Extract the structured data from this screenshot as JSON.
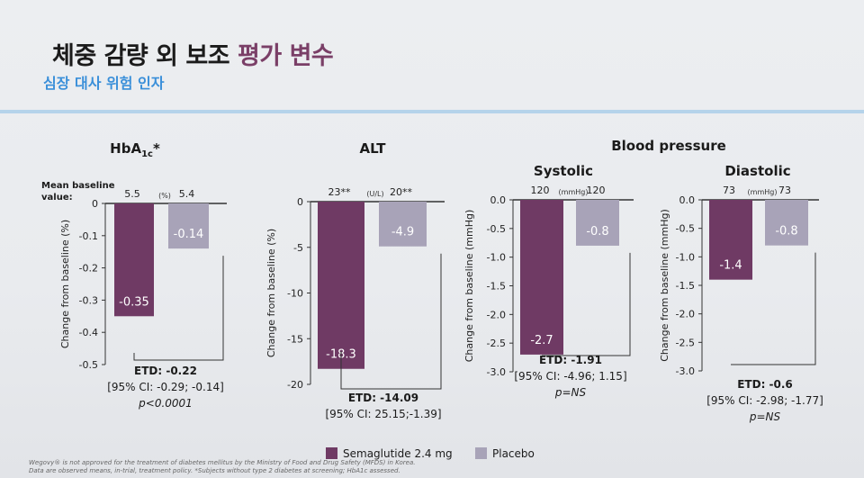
{
  "header": {
    "title_main": "체중 감량 외 보조",
    "title_highlight": "평가 변수",
    "subtitle": "심장 대사 위험 인자"
  },
  "mean_baseline_label": [
    "Mean baseline",
    "value:"
  ],
  "blood_pressure_title": "Blood pressure",
  "legend": [
    {
      "name": "Semaglutide 2.4 mg",
      "color": "#6f3a64"
    },
    {
      "name": "Placebo",
      "color": "#a8a3b8"
    }
  ],
  "footnotes": [
    "Wegovy® is not approved for the treatment of diabetes mellitus by the Ministry of Food and Drug Safety (MFDS) in Korea.",
    "Data are observed means, in-trial, treatment policy. *Subjects without type 2 diabetes at screening; HbA1c assessed."
  ],
  "chart_data": [
    {
      "type": "bar",
      "title": "HbA1c*",
      "ylabel": "Change from baseline (%)",
      "ylim": [
        -0.5,
        0
      ],
      "yticks": [
        0,
        -0.1,
        -0.2,
        -0.3,
        -0.4,
        -0.5
      ],
      "ytick_labels": [
        "0",
        "-0.1",
        "-0.2",
        "-0.3",
        "-0.4",
        "-0.5"
      ],
      "unit": "(%)",
      "baselines": [
        "5.5",
        "5.4"
      ],
      "series": [
        {
          "name": "Semaglutide 2.4 mg",
          "value": -0.35,
          "label": "-0.35"
        },
        {
          "name": "Placebo",
          "value": -0.14,
          "label": "-0.14"
        }
      ],
      "etd": [
        "ETD: -0.22",
        "[95% CI: -0.29; -0.14]",
        "p<0.0001"
      ]
    },
    {
      "type": "bar",
      "title": "ALT",
      "ylabel": "Change from baseline (%)",
      "ylim": [
        -20,
        0
      ],
      "yticks": [
        0,
        -5,
        -10,
        -15,
        -20
      ],
      "ytick_labels": [
        "0",
        "-5",
        "-10",
        "-15",
        "-20"
      ],
      "unit": "(U/L)",
      "baselines": [
        "23**",
        "20**"
      ],
      "series": [
        {
          "name": "Semaglutide 2.4 mg",
          "value": -18.3,
          "label": "-18.3"
        },
        {
          "name": "Placebo",
          "value": -4.9,
          "label": "-4.9"
        }
      ],
      "etd": [
        "ETD: -14.09",
        "[95% CI: 25.15;-1.39]",
        ""
      ]
    },
    {
      "type": "bar",
      "title": "Systolic",
      "ylabel": "Change from baseline (mmHg)",
      "ylim": [
        -3.0,
        0
      ],
      "yticks": [
        0,
        -0.5,
        -1.0,
        -1.5,
        -2.0,
        -2.5,
        -3.0
      ],
      "ytick_labels": [
        "0.0",
        "-0.5",
        "-1.0",
        "-1.5",
        "-2.0",
        "-2.5",
        "-3.0"
      ],
      "unit": "(mmHg)",
      "baselines": [
        "120",
        "120"
      ],
      "series": [
        {
          "name": "Semaglutide 2.4 mg",
          "value": -2.7,
          "label": "-2.7"
        },
        {
          "name": "Placebo",
          "value": -0.8,
          "label": "-0.8"
        }
      ],
      "etd": [
        "ETD: -1.91",
        "[95% CI: -4.96; 1.15]",
        "p=NS"
      ]
    },
    {
      "type": "bar",
      "title": "Diastolic",
      "ylabel": "Change from baseline (mmHg)",
      "ylim": [
        -3.0,
        0
      ],
      "yticks": [
        0,
        -0.5,
        -1.0,
        -1.5,
        -2.0,
        -2.5,
        -3.0
      ],
      "ytick_labels": [
        "0.0",
        "-0.5",
        "-1.0",
        "-1.5",
        "-2.0",
        "-2.5",
        "-3.0"
      ],
      "unit": "(mmHg)",
      "baselines": [
        "73",
        "73"
      ],
      "series": [
        {
          "name": "Semaglutide 2.4 mg",
          "value": -1.4,
          "label": "-1.4"
        },
        {
          "name": "Placebo",
          "value": -0.8,
          "label": "-0.8"
        }
      ],
      "etd": [
        "ETD: -0.6",
        "[95% CI: -2.98; -1.77]",
        "p=NS"
      ]
    }
  ]
}
